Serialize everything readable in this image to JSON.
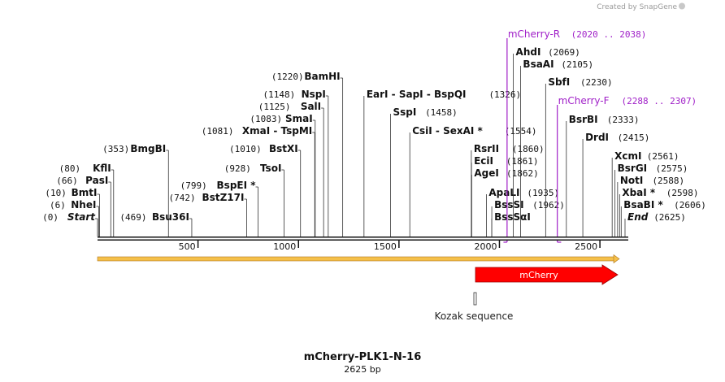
{
  "header": {
    "credit": "Created by SnapGene"
  },
  "plasmid": {
    "name": "mCherry-PLK1-N-16",
    "length_text": "2625 bp",
    "length": 2625
  },
  "ruler": {
    "ticks": [
      500,
      1000,
      1500,
      2000,
      2500
    ]
  },
  "sites": [
    {
      "name": "Start",
      "pos_text": "(0)",
      "pos": 0,
      "italic": true,
      "side": "left"
    },
    {
      "name": "NheI",
      "pos_text": "(6)",
      "pos": 6,
      "side": "left"
    },
    {
      "name": "BmtI",
      "pos_text": "(10)",
      "pos": 10,
      "side": "left"
    },
    {
      "name": "PasI",
      "pos_text": "(66)",
      "pos": 66,
      "side": "left"
    },
    {
      "name": "KflI",
      "pos_text": "(80)",
      "pos": 80,
      "side": "left"
    },
    {
      "name": "BmgBI",
      "pos_text": "(353)",
      "pos": 353,
      "side": "left"
    },
    {
      "name": "Bsu36I",
      "pos_text": "(469)",
      "pos": 469,
      "side": "left"
    },
    {
      "name": "BstZ17I",
      "pos_text": "(742)",
      "pos": 742,
      "side": "left"
    },
    {
      "name": "BspEI *",
      "pos_text": "(799)",
      "pos": 799,
      "side": "left"
    },
    {
      "name": "TsoI",
      "pos_text": "(928)",
      "pos": 928,
      "side": "left"
    },
    {
      "name": "BstXI",
      "pos_text": "(1010)",
      "pos": 1010,
      "side": "left"
    },
    {
      "name": "XmaI - TspMI",
      "pos_text": "(1081)",
      "pos": 1081,
      "side": "left"
    },
    {
      "name": "SmaI",
      "pos_text": "(1083)",
      "pos": 1083,
      "side": "left"
    },
    {
      "name": "SalI",
      "pos_text": "(1125)",
      "pos": 1125,
      "side": "left"
    },
    {
      "name": "NspI",
      "pos_text": "(1148)",
      "pos": 1148,
      "side": "left"
    },
    {
      "name": "BamHI",
      "pos_text": "(1220)",
      "pos": 1220,
      "side": "left"
    },
    {
      "name": "EarI - SapI - BspQI",
      "pos_text": "(1326)",
      "pos": 1326,
      "side": "right"
    },
    {
      "name": "SspI",
      "pos_text": "(1458)",
      "pos": 1458,
      "side": "right"
    },
    {
      "name": "CsiI - SexAI *",
      "pos_text": "(1554)",
      "pos": 1554,
      "side": "right"
    },
    {
      "name": "RsrII",
      "pos_text": "(1860)",
      "pos": 1860,
      "side": "right"
    },
    {
      "name": "EciI",
      "pos_text": "(1861)",
      "pos": 1861,
      "side": "right"
    },
    {
      "name": "AgeI",
      "pos_text": "(1862)",
      "pos": 1862,
      "side": "right"
    },
    {
      "name": "ApaLI",
      "pos_text": "(1935)",
      "pos": 1935,
      "side": "right"
    },
    {
      "name": "BssSI",
      "pos_text": "(1962)",
      "pos": 1962,
      "side": "right"
    },
    {
      "name": "BssSαI",
      "pos_text": "",
      "pos": 1962,
      "side": "right"
    },
    {
      "name": "AhdI",
      "pos_text": "(2069)",
      "pos": 2069,
      "side": "right"
    },
    {
      "name": "BsaAI",
      "pos_text": "(2105)",
      "pos": 2105,
      "side": "right"
    },
    {
      "name": "SbfI",
      "pos_text": "(2230)",
      "pos": 2230,
      "side": "right"
    },
    {
      "name": "BsrBI",
      "pos_text": "(2333)",
      "pos": 2333,
      "side": "right"
    },
    {
      "name": "DrdI",
      "pos_text": "(2415)",
      "pos": 2415,
      "side": "right"
    },
    {
      "name": "XcmI",
      "pos_text": "(2561)",
      "pos": 2561,
      "side": "right"
    },
    {
      "name": "BsrGI",
      "pos_text": "(2575)",
      "pos": 2575,
      "side": "right"
    },
    {
      "name": "NotI",
      "pos_text": "(2588)",
      "pos": 2588,
      "side": "right"
    },
    {
      "name": "XbaI *",
      "pos_text": "(2598)",
      "pos": 2598,
      "side": "right"
    },
    {
      "name": "BsaBI *",
      "pos_text": "(2606)",
      "pos": 2606,
      "side": "right"
    },
    {
      "name": "End",
      "pos_text": "(2625)",
      "pos": 2625,
      "italic": true,
      "side": "right"
    }
  ],
  "primers": [
    {
      "name": "mCherry-R",
      "range_text": "(2020 .. 2038)",
      "start": 2020,
      "end": 2038,
      "direction": "reverse"
    },
    {
      "name": "mCherry-F",
      "range_text": "(2288 .. 2307)",
      "start": 2288,
      "end": 2307,
      "direction": "forward"
    }
  ],
  "features": [
    {
      "name": "mCherry",
      "start": 1880,
      "end": 2625,
      "color": "#ff0000",
      "direction": "forward"
    },
    {
      "name": "Kozak sequence",
      "start": 1870,
      "end": 1879,
      "color": "#ffffff"
    }
  ],
  "colors": {
    "primer": "#a020c8",
    "backbone_arrow": "#f5c04a",
    "feature": "#ff0000"
  }
}
